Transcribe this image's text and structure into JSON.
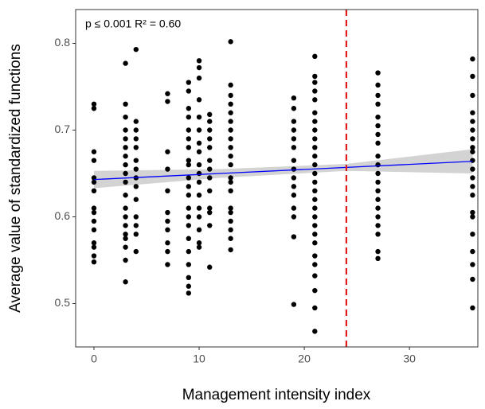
{
  "chart_data": {
    "type": "scatter",
    "annotation": "p ≤ 0.001  R² = 0.60",
    "x_label": "Management intensity index",
    "y_label": "Average value of standardized functions",
    "xlim": [
      -1.74,
      36.5
    ],
    "ylim": [
      0.45,
      0.839
    ],
    "xticks": [
      0,
      10,
      20,
      30
    ],
    "yticks": [
      0.5,
      0.6,
      0.7,
      0.8
    ],
    "grid": false,
    "series": [
      {
        "color": "#000000",
        "x": [
          0,
          0,
          0,
          0,
          0,
          0,
          0,
          0,
          0,
          0,
          0,
          0,
          0,
          0,
          0,
          3,
          3,
          3,
          3,
          3,
          3,
          3,
          3,
          3,
          3,
          3,
          3,
          3,
          3,
          3,
          3,
          3,
          3,
          3,
          4,
          4,
          4,
          4,
          4,
          4,
          4,
          4,
          4,
          4,
          4,
          4,
          4,
          4,
          7,
          7,
          7,
          7,
          7,
          7,
          7,
          7,
          7,
          7,
          7,
          9,
          9,
          9,
          9,
          9,
          9,
          9,
          9,
          9,
          9,
          9,
          9,
          9,
          9,
          9,
          9,
          9,
          9,
          9,
          9,
          9,
          10,
          10,
          10,
          10,
          10,
          10,
          10,
          10,
          10,
          10,
          10,
          10,
          10,
          10,
          10,
          10,
          10,
          11,
          11,
          11,
          11,
          11,
          11,
          11,
          11,
          11,
          11,
          11,
          11,
          11,
          13,
          13,
          13,
          13,
          13,
          13,
          13,
          13,
          13,
          13,
          13,
          13,
          13,
          13,
          13,
          13,
          13,
          13,
          13,
          13,
          19,
          19,
          19,
          19,
          19,
          19,
          19,
          19,
          19,
          19,
          19,
          19,
          19,
          19,
          19,
          21,
          21,
          21,
          21,
          21,
          21,
          21,
          21,
          21,
          21,
          21,
          21,
          21,
          21,
          21,
          21,
          21,
          21,
          21,
          21,
          21,
          21,
          21,
          21,
          21,
          21,
          21,
          27,
          27,
          27,
          27,
          27,
          27,
          27,
          27,
          27,
          27,
          27,
          27,
          27,
          27,
          27,
          27,
          27,
          27,
          27,
          27,
          36,
          36,
          36,
          36,
          36,
          36,
          36,
          36,
          36,
          36,
          36,
          36,
          36,
          36,
          36,
          36,
          36,
          36,
          36,
          36,
          36
        ],
        "values": [
          0.73,
          0.725,
          0.675,
          0.665,
          0.645,
          0.64,
          0.63,
          0.61,
          0.605,
          0.595,
          0.585,
          0.57,
          0.565,
          0.555,
          0.548,
          0.777,
          0.73,
          0.715,
          0.7,
          0.69,
          0.68,
          0.67,
          0.66,
          0.65,
          0.64,
          0.625,
          0.61,
          0.6,
          0.59,
          0.58,
          0.575,
          0.565,
          0.55,
          0.525,
          0.793,
          0.71,
          0.7,
          0.69,
          0.68,
          0.665,
          0.655,
          0.645,
          0.635,
          0.62,
          0.6,
          0.59,
          0.58,
          0.56,
          0.742,
          0.733,
          0.675,
          0.655,
          0.63,
          0.605,
          0.595,
          0.585,
          0.57,
          0.56,
          0.545,
          0.755,
          0.745,
          0.725,
          0.715,
          0.7,
          0.69,
          0.68,
          0.665,
          0.66,
          0.645,
          0.635,
          0.625,
          0.61,
          0.6,
          0.59,
          0.575,
          0.56,
          0.545,
          0.53,
          0.52,
          0.512,
          0.78,
          0.772,
          0.76,
          0.735,
          0.715,
          0.7,
          0.685,
          0.675,
          0.66,
          0.65,
          0.64,
          0.625,
          0.61,
          0.6,
          0.585,
          0.57,
          0.565,
          0.718,
          0.71,
          0.7,
          0.69,
          0.68,
          0.665,
          0.655,
          0.645,
          0.63,
          0.61,
          0.605,
          0.59,
          0.542,
          0.802,
          0.752,
          0.74,
          0.73,
          0.72,
          0.71,
          0.7,
          0.69,
          0.68,
          0.67,
          0.66,
          0.645,
          0.64,
          0.63,
          0.61,
          0.605,
          0.595,
          0.585,
          0.575,
          0.562,
          0.737,
          0.725,
          0.71,
          0.7,
          0.69,
          0.68,
          0.665,
          0.655,
          0.645,
          0.635,
          0.625,
          0.61,
          0.6,
          0.577,
          0.499,
          0.785,
          0.762,
          0.755,
          0.745,
          0.735,
          0.72,
          0.71,
          0.7,
          0.69,
          0.68,
          0.67,
          0.66,
          0.65,
          0.64,
          0.63,
          0.62,
          0.61,
          0.6,
          0.59,
          0.58,
          0.57,
          0.555,
          0.545,
          0.532,
          0.515,
          0.495,
          0.468,
          0.766,
          0.752,
          0.74,
          0.73,
          0.715,
          0.705,
          0.695,
          0.685,
          0.67,
          0.66,
          0.65,
          0.64,
          0.63,
          0.62,
          0.61,
          0.6,
          0.59,
          0.58,
          0.56,
          0.552,
          0.782,
          0.762,
          0.74,
          0.72,
          0.71,
          0.7,
          0.69,
          0.68,
          0.675,
          0.665,
          0.655,
          0.645,
          0.635,
          0.625,
          0.605,
          0.6,
          0.58,
          0.56,
          0.545,
          0.528,
          0.495
        ]
      }
    ],
    "fit": {
      "color": "#0000ff",
      "band_color": "#d3d3d3",
      "x": [
        0,
        12,
        24,
        36
      ],
      "values": [
        0.643,
        0.65,
        0.657,
        0.664
      ],
      "lower": [
        0.633,
        0.645,
        0.653,
        0.65
      ],
      "upper": [
        0.653,
        0.655,
        0.661,
        0.678
      ]
    },
    "vline": {
      "x": 24,
      "color": "#e31a1c"
    }
  }
}
